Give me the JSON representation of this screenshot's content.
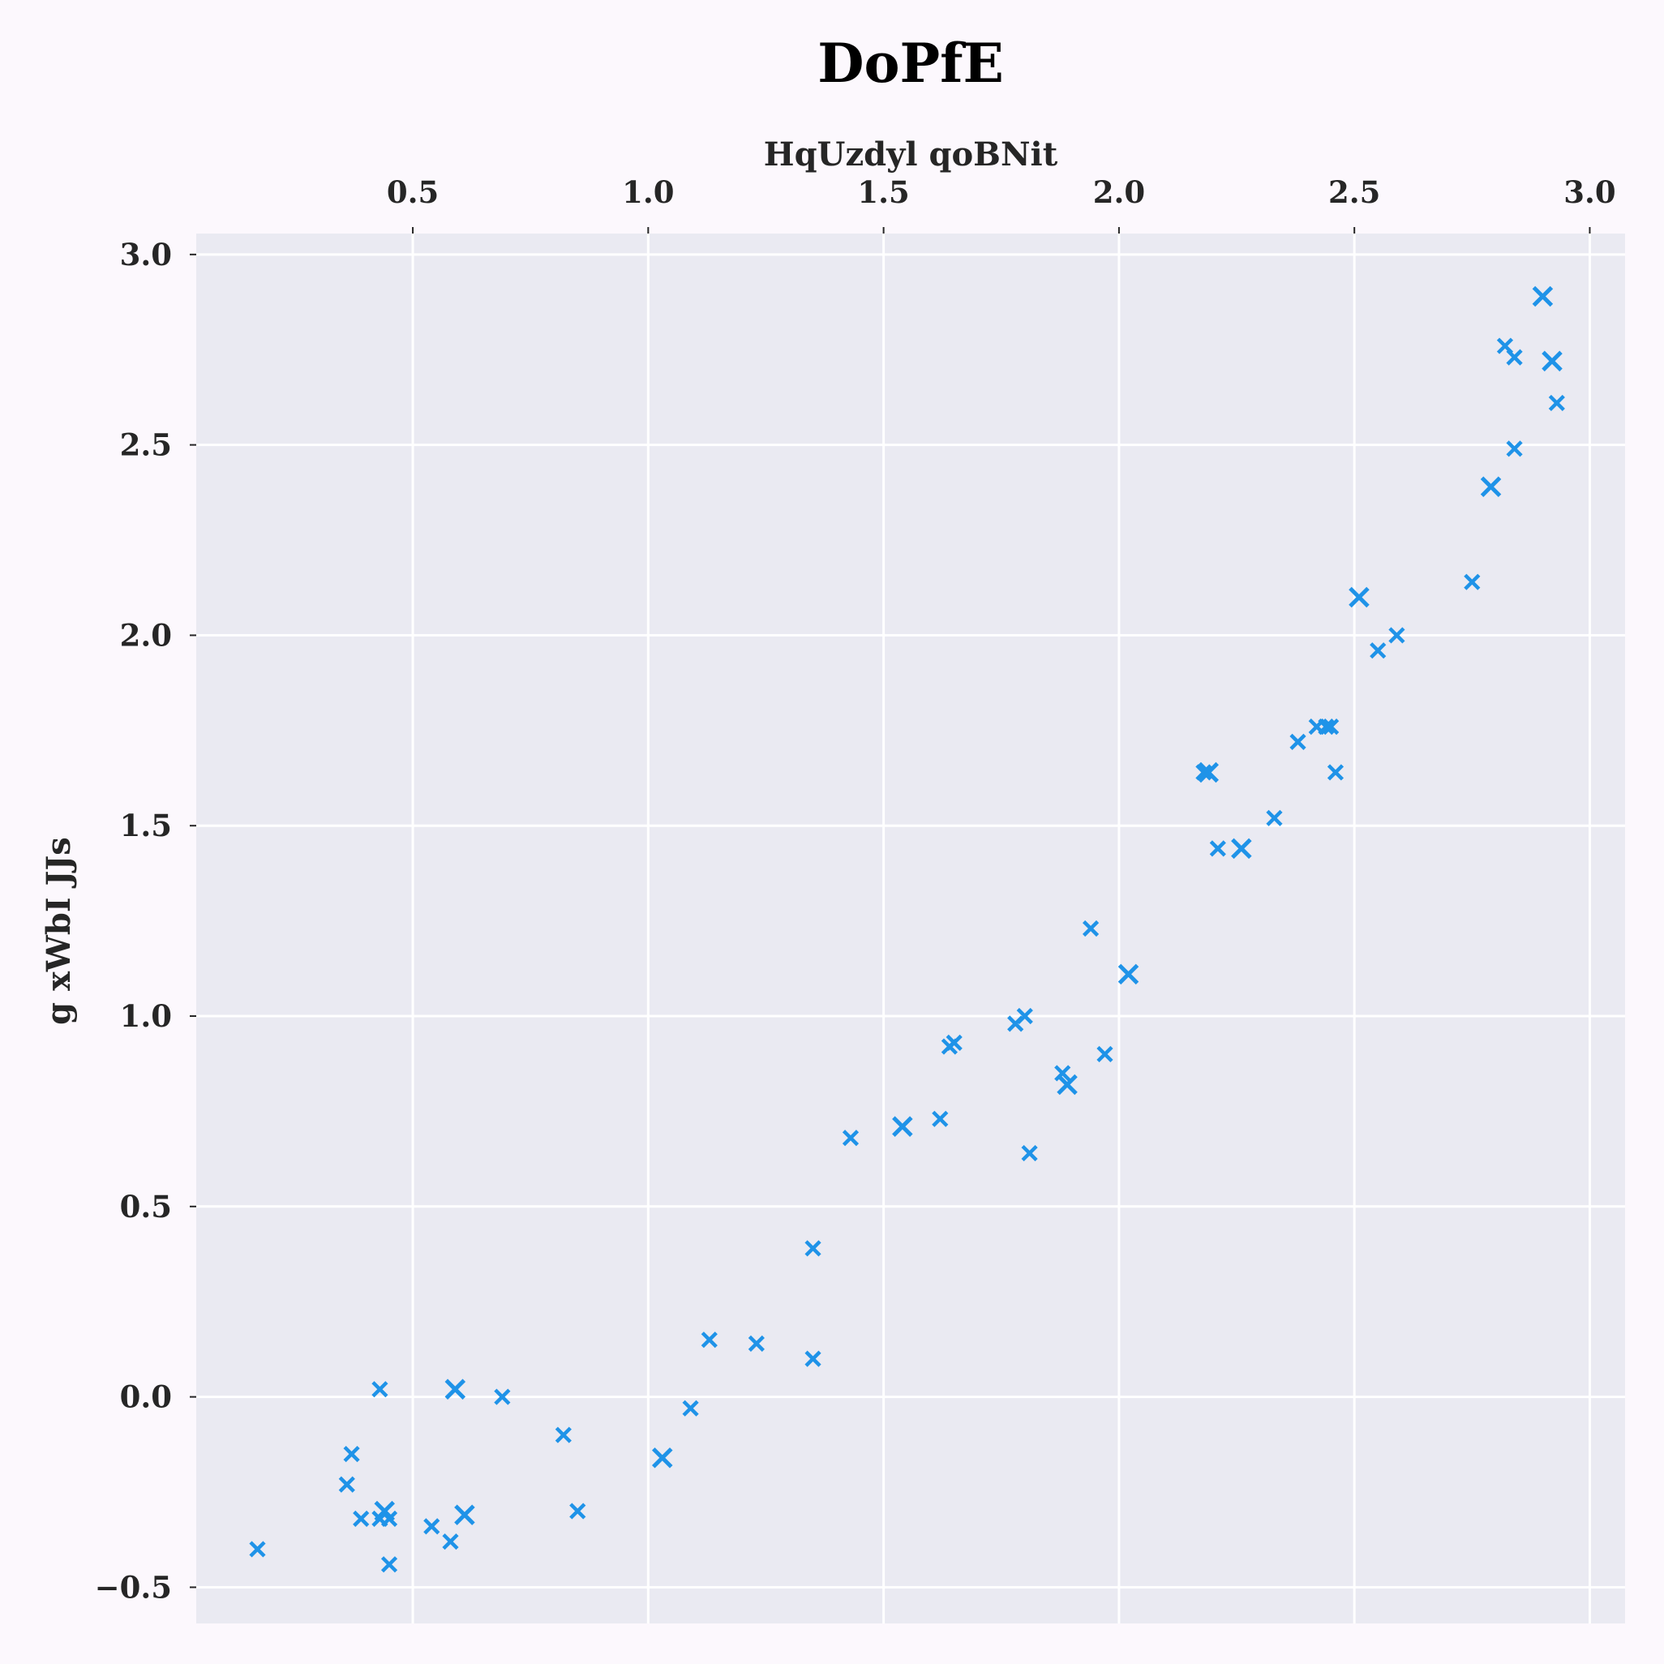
{
  "chart_data": {
    "type": "scatter",
    "title": "DoPfE",
    "xlabel": "HqUzdyl qoBNit",
    "ylabel": "g  xWbI JJs",
    "xlim": [
      0.04,
      3.075
    ],
    "ylim": [
      -0.595,
      3.055
    ],
    "xticks": [
      0.5,
      1.0,
      1.5,
      2.0,
      2.5,
      3.0
    ],
    "xtick_labels": [
      "0.5",
      "1.0",
      "1.5",
      "2.0",
      "2.5",
      "3.0"
    ],
    "yticks": [
      -0.5,
      0.0,
      0.5,
      1.0,
      1.5,
      2.0,
      2.5,
      3.0
    ],
    "ytick_labels": [
      "−0.5",
      "0.0",
      "0.5",
      "1.0",
      "1.5",
      "2.0",
      "2.5",
      "3.0"
    ],
    "x_axis_position": "top",
    "grid": true,
    "marker": "x",
    "color": "#1f93e8",
    "points": [
      {
        "x": 0.17,
        "y": -0.4,
        "s": 1
      },
      {
        "x": 0.36,
        "y": -0.23,
        "s": 1
      },
      {
        "x": 0.37,
        "y": -0.15,
        "s": 1
      },
      {
        "x": 0.39,
        "y": -0.32,
        "s": 1
      },
      {
        "x": 0.43,
        "y": 0.02,
        "s": 1
      },
      {
        "x": 0.43,
        "y": -0.32,
        "s": 1
      },
      {
        "x": 0.44,
        "y": -0.3,
        "s": 2
      },
      {
        "x": 0.45,
        "y": -0.32,
        "s": 1
      },
      {
        "x": 0.45,
        "y": -0.44,
        "s": 1
      },
      {
        "x": 0.54,
        "y": -0.34,
        "s": 1
      },
      {
        "x": 0.58,
        "y": -0.38,
        "s": 1
      },
      {
        "x": 0.59,
        "y": 0.02,
        "s": 2
      },
      {
        "x": 0.61,
        "y": -0.31,
        "s": 2
      },
      {
        "x": 0.69,
        "y": 0.0,
        "s": 1
      },
      {
        "x": 0.82,
        "y": -0.1,
        "s": 1
      },
      {
        "x": 0.85,
        "y": -0.3,
        "s": 1
      },
      {
        "x": 1.03,
        "y": -0.16,
        "s": 2
      },
      {
        "x": 1.09,
        "y": -0.03,
        "s": 1
      },
      {
        "x": 1.13,
        "y": 0.15,
        "s": 1
      },
      {
        "x": 1.23,
        "y": 0.14,
        "s": 1
      },
      {
        "x": 1.35,
        "y": 0.1,
        "s": 1
      },
      {
        "x": 1.35,
        "y": 0.39,
        "s": 1
      },
      {
        "x": 1.43,
        "y": 0.68,
        "s": 1
      },
      {
        "x": 1.54,
        "y": 0.71,
        "s": 2
      },
      {
        "x": 1.62,
        "y": 0.73,
        "s": 1
      },
      {
        "x": 1.64,
        "y": 0.92,
        "s": 1
      },
      {
        "x": 1.65,
        "y": 0.93,
        "s": 1
      },
      {
        "x": 1.78,
        "y": 0.98,
        "s": 1
      },
      {
        "x": 1.8,
        "y": 1.0,
        "s": 1
      },
      {
        "x": 1.81,
        "y": 0.64,
        "s": 1
      },
      {
        "x": 1.88,
        "y": 0.85,
        "s": 1
      },
      {
        "x": 1.89,
        "y": 0.82,
        "s": 2
      },
      {
        "x": 1.94,
        "y": 1.23,
        "s": 1
      },
      {
        "x": 1.97,
        "y": 0.9,
        "s": 1
      },
      {
        "x": 2.02,
        "y": 1.11,
        "s": 2
      },
      {
        "x": 2.18,
        "y": 1.64,
        "s": 1
      },
      {
        "x": 2.19,
        "y": 1.64,
        "s": 2
      },
      {
        "x": 2.21,
        "y": 1.44,
        "s": 1
      },
      {
        "x": 2.26,
        "y": 1.44,
        "s": 2
      },
      {
        "x": 2.33,
        "y": 1.52,
        "s": 1
      },
      {
        "x": 2.38,
        "y": 1.72,
        "s": 1
      },
      {
        "x": 2.42,
        "y": 1.76,
        "s": 1
      },
      {
        "x": 2.44,
        "y": 1.76,
        "s": 1
      },
      {
        "x": 2.45,
        "y": 1.76,
        "s": 1
      },
      {
        "x": 2.46,
        "y": 1.64,
        "s": 1
      },
      {
        "x": 2.51,
        "y": 2.1,
        "s": 2
      },
      {
        "x": 2.55,
        "y": 1.96,
        "s": 1
      },
      {
        "x": 2.59,
        "y": 2.0,
        "s": 1
      },
      {
        "x": 2.75,
        "y": 2.14,
        "s": 1
      },
      {
        "x": 2.79,
        "y": 2.39,
        "s": 2
      },
      {
        "x": 2.82,
        "y": 2.76,
        "s": 1
      },
      {
        "x": 2.84,
        "y": 2.73,
        "s": 1
      },
      {
        "x": 2.84,
        "y": 2.49,
        "s": 1
      },
      {
        "x": 2.9,
        "y": 2.89,
        "s": 2
      },
      {
        "x": 2.92,
        "y": 2.72,
        "s": 2
      },
      {
        "x": 2.93,
        "y": 2.61,
        "s": 1
      }
    ]
  }
}
